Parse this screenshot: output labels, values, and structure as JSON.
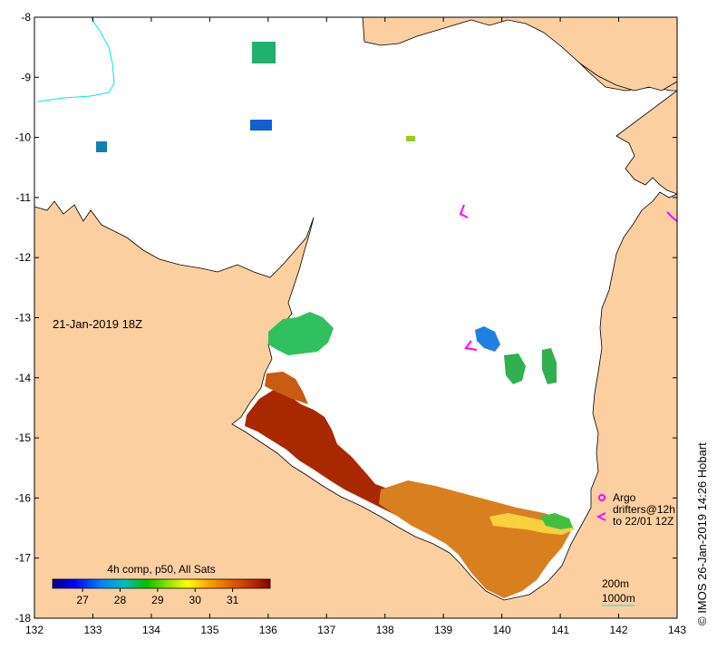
{
  "map": {
    "date_label": "21-Jan-2019 18Z",
    "lon_ticks": [
      "132",
      "133",
      "134",
      "135",
      "136",
      "137",
      "138",
      "139",
      "140",
      "141",
      "142",
      "143"
    ],
    "lat_ticks": [
      "-8",
      "-9",
      "-10",
      "-11",
      "-12",
      "-13",
      "-14",
      "-15",
      "-16",
      "-17",
      "-18"
    ],
    "extent": {
      "lon_min": 132,
      "lon_max": 143,
      "lat_min": -18,
      "lat_max": -8
    },
    "colors": {
      "land": "#fccfa0",
      "ocean_no_data": "#ffffff",
      "coastline": "#000000",
      "isobath_200m": "#00e5ee",
      "argo": "#ff00ff",
      "drifter": "#ff00ff"
    }
  },
  "colorbar": {
    "title": "4h comp, p50, All Sats",
    "tick_labels": [
      "27",
      "28",
      "29",
      "30",
      "31"
    ],
    "range": [
      26.2,
      32
    ],
    "stops": [
      "#00008b",
      "#0000ff",
      "#0080ff",
      "#00c0c0",
      "#00c000",
      "#80e000",
      "#ffff00",
      "#ffa000",
      "#e06000",
      "#c03000",
      "#8b0000"
    ]
  },
  "legend": {
    "argo_label": "Argo",
    "drifters_label": "drifters@12h",
    "drifters_to_label": "to 22/01 12Z",
    "isobath_200_label": "200m",
    "isobath_1000_label": "1000m"
  },
  "credit": "© IMOS 26-Jan-2019 14:26 Hobart"
}
